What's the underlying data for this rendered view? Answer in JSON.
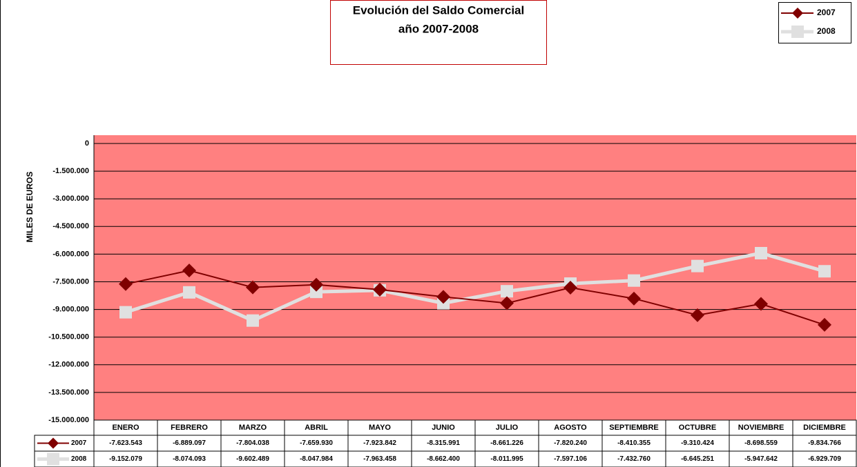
{
  "chart_data": {
    "type": "line",
    "title": "Evolución del Saldo Comercial",
    "subtitle": "año 2007-2008",
    "y_label": "MILES DE EUROS",
    "categories": [
      "ENERO",
      "FEBRERO",
      "MARZO",
      "ABRIL",
      "MAYO",
      "JUNIO",
      "JULIO",
      "AGOSTO",
      "SEPTIEMBRE",
      "OCTUBRE",
      "NOVIEMBRE",
      "DICIEMBRE"
    ],
    "series": [
      {
        "name": "2007",
        "color": "#800000",
        "marker": "diamond",
        "values": [
          -7623543,
          -6889097,
          -7804038,
          -7659930,
          -7923842,
          -8315991,
          -8661226,
          -7820240,
          -8410355,
          -9310424,
          -8698559,
          -9834766
        ],
        "value_labels": [
          "-7.623.543",
          "-6.889.097",
          "-7.804.038",
          "-7.659.930",
          "-7.923.842",
          "-8.315.991",
          "-8.661.226",
          "-7.820.240",
          "-8.410.355",
          "-9.310.424",
          "-8.698.559",
          "-9.834.766"
        ]
      },
      {
        "name": "2008",
        "color": "#e0e0e0",
        "marker": "square",
        "values": [
          -9152079,
          -8074093,
          -9602489,
          -8047984,
          -7963458,
          -8662400,
          -8011995,
          -7597106,
          -7432760,
          -6645251,
          -5947642,
          -6929709
        ],
        "value_labels": [
          "-9.152.079",
          "-8.074.093",
          "-9.602.489",
          "-8.047.984",
          "-7.963.458",
          "-8.662.400",
          "-8.011.995",
          "-7.597.106",
          "-7.432.760",
          "-6.645.251",
          "-5.947.642",
          "-6.929.709"
        ]
      }
    ],
    "ylim": [
      -15000000,
      0
    ],
    "yticks": [
      0,
      {
        "value": -1500000,
        "label": "-1.500.000"
      },
      {
        "value": -3000000,
        "label": "-3.000.000"
      },
      {
        "value": -4500000,
        "label": "-4.500.000"
      },
      {
        "value": -6000000,
        "label": "-6.000.000"
      },
      {
        "value": -7500000,
        "label": "-7.500.000"
      },
      {
        "value": -9000000,
        "label": "-9.000.000"
      },
      {
        "value": -10500000,
        "label": "-10.500.000"
      },
      {
        "value": -12000000,
        "label": "-12.000.000"
      },
      {
        "value": -13500000,
        "label": "-13.500.000"
      },
      {
        "value": -15000000,
        "label": "-15.000.000"
      }
    ],
    "grid": true,
    "plot_background": "#ff8080",
    "legend": "top-right"
  }
}
